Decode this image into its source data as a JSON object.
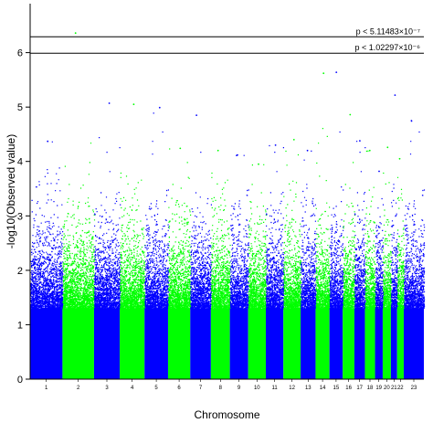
{
  "chart_data": {
    "type": "scatter",
    "title": "",
    "xlabel": "Chromosome",
    "ylabel": "-log10(Observed value)",
    "ylim": [
      0,
      6.9
    ],
    "yticks": [
      0,
      1,
      2,
      3,
      4,
      5,
      6
    ],
    "grid": false,
    "legend": "none",
    "colors": {
      "odd": "#0000ff",
      "even": "#00ff00",
      "axis": "#000000"
    },
    "chromosomes": [
      {
        "label": "1",
        "start": 0,
        "end": 249,
        "max": 4.37
      },
      {
        "label": "2",
        "start": 249,
        "end": 492,
        "max": 6.36
      },
      {
        "label": "3",
        "start": 492,
        "end": 690,
        "max": 5.07
      },
      {
        "label": "4",
        "start": 690,
        "end": 881,
        "max": 5.05
      },
      {
        "label": "5",
        "start": 881,
        "end": 1062,
        "max": 4.99
      },
      {
        "label": "6",
        "start": 1062,
        "end": 1233,
        "max": 4.24
      },
      {
        "label": "7",
        "start": 1233,
        "end": 1392,
        "max": 4.85
      },
      {
        "label": "8",
        "start": 1392,
        "end": 1538,
        "max": 4.2
      },
      {
        "label": "9",
        "start": 1538,
        "end": 1679,
        "max": 4.12
      },
      {
        "label": "10",
        "start": 1679,
        "end": 1815,
        "max": 3.95
      },
      {
        "label": "11",
        "start": 1815,
        "end": 1950,
        "max": 4.3
      },
      {
        "label": "12",
        "start": 1950,
        "end": 2083,
        "max": 4.4
      },
      {
        "label": "13",
        "start": 2083,
        "end": 2198,
        "max": 4.2
      },
      {
        "label": "14",
        "start": 2198,
        "end": 2305,
        "max": 5.62
      },
      {
        "label": "15",
        "start": 2305,
        "end": 2407,
        "max": 5.64
      },
      {
        "label": "16",
        "start": 2407,
        "end": 2497,
        "max": 4.86
      },
      {
        "label": "17",
        "start": 2497,
        "end": 2578,
        "max": 4.38
      },
      {
        "label": "18",
        "start": 2578,
        "end": 2656,
        "max": 4.2
      },
      {
        "label": "19",
        "start": 2656,
        "end": 2715,
        "max": 3.82
      },
      {
        "label": "20",
        "start": 2715,
        "end": 2778,
        "max": 4.26
      },
      {
        "label": "21",
        "start": 2778,
        "end": 2826,
        "max": 5.22
      },
      {
        "label": "22",
        "start": 2826,
        "end": 2877,
        "max": 4.05
      },
      {
        "label": "23",
        "start": 2877,
        "end": 3032,
        "max": 4.75
      }
    ],
    "thresholds": [
      {
        "value": 6.29,
        "label": "p < 5.11483×10⁻⁷"
      },
      {
        "value": 5.99,
        "label": "p < 1.02297×10⁻⁶"
      }
    ]
  }
}
